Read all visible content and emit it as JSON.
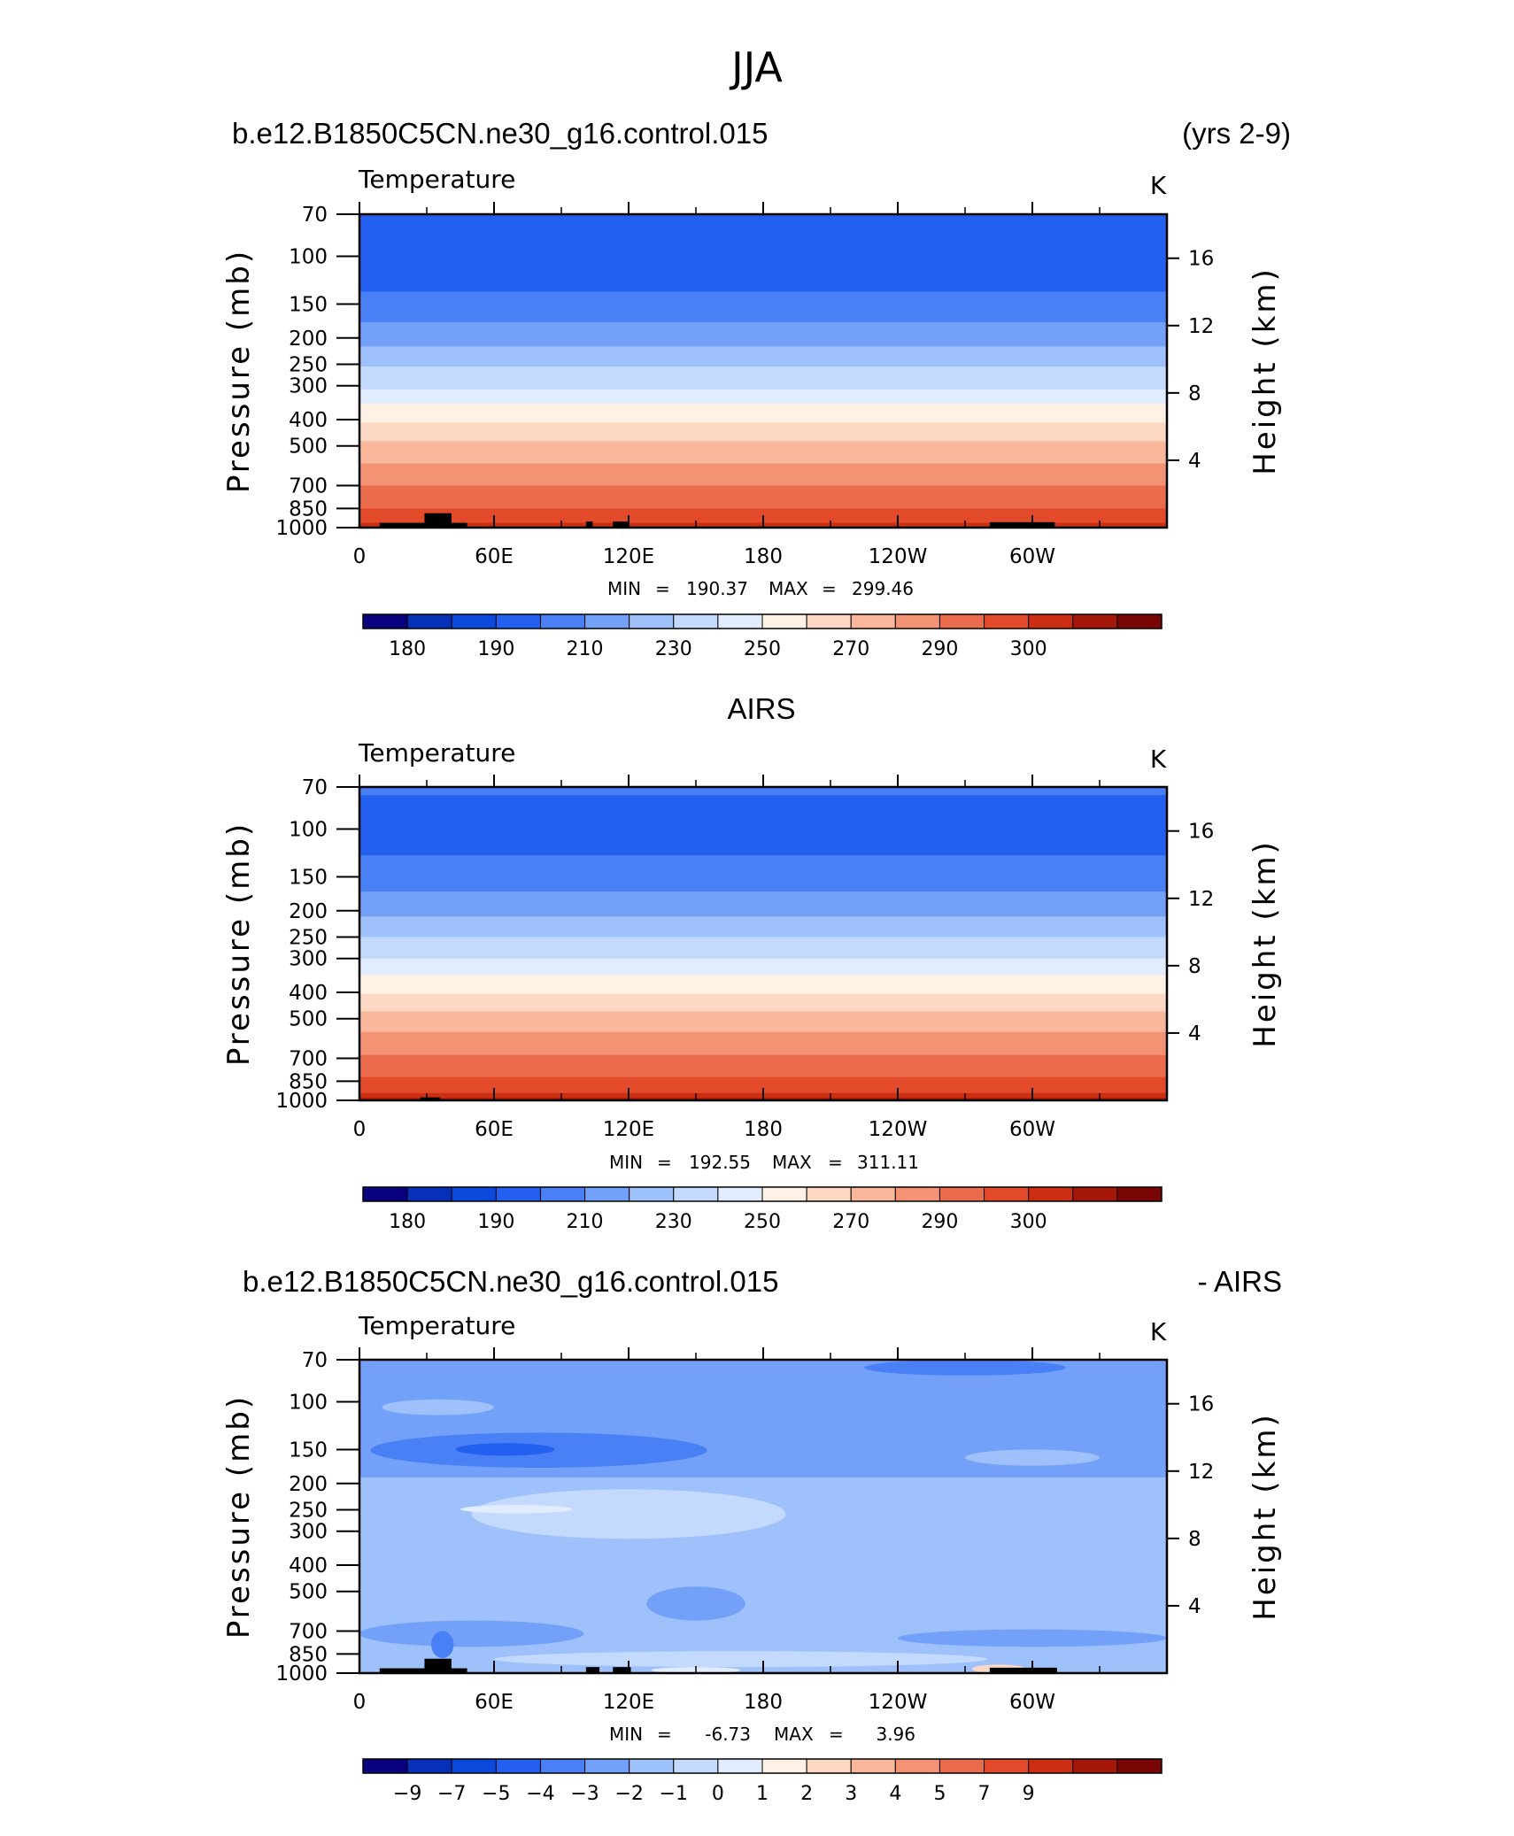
{
  "figure": {
    "title": "JJA"
  },
  "colorbar_colors": [
    "#08007e",
    "#0730b8",
    "#0b49dd",
    "#2460ef",
    "#4a80f5",
    "#73a0f8",
    "#9ec0fb",
    "#c3d9fd",
    "#e1ecfe",
    "#fff1e4",
    "#fdd8c4",
    "#f9b89c",
    "#f39374",
    "#eb6c4c",
    "#e34a2a",
    "#cc2e12",
    "#a6170b",
    "#7a0505"
  ],
  "chart_data": [
    {
      "type": "heatmap",
      "id": "model",
      "title_left": "b.e12.B1850C5CN.ne30_g16.control.015",
      "title_right": "(yrs 2-9)",
      "variable": "Temperature",
      "units": "K",
      "ylabel": "Pressure (mb)",
      "ylabel_right": "Height (km)",
      "x_ticks": [
        "0",
        "60E",
        "120E",
        "180",
        "120W",
        "60W"
      ],
      "x_tick_values": [
        0,
        60,
        120,
        180,
        240,
        300
      ],
      "x_range": [
        0,
        360
      ],
      "y_ticks": [
        "70",
        "100",
        "150",
        "200",
        "250",
        "300",
        "400",
        "500",
        "700",
        "850",
        "1000"
      ],
      "y_tick_values": [
        70,
        100,
        150,
        200,
        250,
        300,
        400,
        500,
        700,
        850,
        1000
      ],
      "y_scale": "log",
      "y_range": [
        70,
        1000
      ],
      "height_ticks": [
        "4",
        "8",
        "12",
        "16"
      ],
      "height_tick_values": [
        4,
        8,
        12,
        16
      ],
      "min_label": "MIN",
      "min_value": "190.37",
      "max_label": "MAX",
      "max_value": "299.46",
      "stat_eq": "=",
      "colorbar_labels": [
        "180",
        "190",
        "210",
        "230",
        "250",
        "270",
        "290",
        "300"
      ],
      "colorbar_label_edges": [
        1,
        3,
        5,
        7,
        9,
        11,
        13,
        15
      ],
      "bands": [
        {
          "p_top": 70,
          "p_bot": 135,
          "color_index": 3
        },
        {
          "p_top": 135,
          "p_bot": 175,
          "color_index": 4
        },
        {
          "p_top": 175,
          "p_bot": 215,
          "color_index": 5
        },
        {
          "p_top": 215,
          "p_bot": 255,
          "color_index": 6
        },
        {
          "p_top": 255,
          "p_bot": 310,
          "color_index": 7
        },
        {
          "p_top": 310,
          "p_bot": 350,
          "color_index": 8
        },
        {
          "p_top": 350,
          "p_bot": 410,
          "color_index": 9
        },
        {
          "p_top": 410,
          "p_bot": 480,
          "color_index": 10
        },
        {
          "p_top": 480,
          "p_bot": 580,
          "color_index": 11
        },
        {
          "p_top": 580,
          "p_bot": 700,
          "color_index": 12
        },
        {
          "p_top": 700,
          "p_bot": 850,
          "color_index": 13
        },
        {
          "p_top": 850,
          "p_bot": 960,
          "color_index": 14
        },
        {
          "p_top": 960,
          "p_bot": 1000,
          "color_index": 15
        }
      ],
      "terrain": [
        {
          "lon0": 9,
          "lon1": 48,
          "p_top": 960
        },
        {
          "lon0": 29,
          "lon1": 41,
          "p_top": 885
        },
        {
          "lon0": 101,
          "lon1": 104,
          "p_top": 950
        },
        {
          "lon0": 113,
          "lon1": 120,
          "p_top": 950
        },
        {
          "lon0": 281,
          "lon1": 310,
          "p_top": 955
        }
      ]
    },
    {
      "type": "heatmap",
      "id": "obs",
      "title_center": "AIRS",
      "variable": "Temperature",
      "units": "K",
      "ylabel": "Pressure (mb)",
      "ylabel_right": "Height (km)",
      "x_ticks": [
        "0",
        "60E",
        "120E",
        "180",
        "120W",
        "60W"
      ],
      "x_tick_values": [
        0,
        60,
        120,
        180,
        240,
        300
      ],
      "x_range": [
        0,
        360
      ],
      "y_ticks": [
        "70",
        "100",
        "150",
        "200",
        "250",
        "300",
        "400",
        "500",
        "700",
        "850",
        "1000"
      ],
      "y_tick_values": [
        70,
        100,
        150,
        200,
        250,
        300,
        400,
        500,
        700,
        850,
        1000
      ],
      "y_scale": "log",
      "y_range": [
        70,
        1000
      ],
      "height_ticks": [
        "4",
        "8",
        "12",
        "16"
      ],
      "height_tick_values": [
        4,
        8,
        12,
        16
      ],
      "min_label": "MIN",
      "min_value": "192.55",
      "max_label": "MAX",
      "max_value": "311.11",
      "stat_eq": "=",
      "colorbar_labels": [
        "180",
        "190",
        "210",
        "230",
        "250",
        "270",
        "290",
        "300"
      ],
      "colorbar_label_edges": [
        1,
        3,
        5,
        7,
        9,
        11,
        13,
        15
      ],
      "bands": [
        {
          "p_top": 70,
          "p_bot": 75,
          "color_index": 4
        },
        {
          "p_top": 75,
          "p_bot": 125,
          "color_index": 3
        },
        {
          "p_top": 125,
          "p_bot": 170,
          "color_index": 4
        },
        {
          "p_top": 170,
          "p_bot": 210,
          "color_index": 5
        },
        {
          "p_top": 210,
          "p_bot": 250,
          "color_index": 6
        },
        {
          "p_top": 250,
          "p_bot": 300,
          "color_index": 7
        },
        {
          "p_top": 300,
          "p_bot": 345,
          "color_index": 8
        },
        {
          "p_top": 345,
          "p_bot": 405,
          "color_index": 9
        },
        {
          "p_top": 405,
          "p_bot": 470,
          "color_index": 10
        },
        {
          "p_top": 470,
          "p_bot": 560,
          "color_index": 11
        },
        {
          "p_top": 560,
          "p_bot": 680,
          "color_index": 12
        },
        {
          "p_top": 680,
          "p_bot": 820,
          "color_index": 13
        },
        {
          "p_top": 820,
          "p_bot": 940,
          "color_index": 14
        },
        {
          "p_top": 940,
          "p_bot": 980,
          "color_index": 15
        },
        {
          "p_top": 980,
          "p_bot": 1000,
          "color_index": 16
        }
      ],
      "terrain": [
        {
          "lon0": 27,
          "lon1": 36,
          "p_top": 975
        }
      ]
    },
    {
      "type": "heatmap",
      "id": "diff",
      "title_left": "b.e12.B1850C5CN.ne30_g16.control.015",
      "title_right": "- AIRS",
      "variable": "Temperature",
      "units": "K",
      "ylabel": "Pressure (mb)",
      "ylabel_right": "Height (km)",
      "x_ticks": [
        "0",
        "60E",
        "120E",
        "180",
        "120W",
        "60W"
      ],
      "x_tick_values": [
        0,
        60,
        120,
        180,
        240,
        300
      ],
      "x_range": [
        0,
        360
      ],
      "y_ticks": [
        "70",
        "100",
        "150",
        "200",
        "250",
        "300",
        "400",
        "500",
        "700",
        "850",
        "1000"
      ],
      "y_tick_values": [
        70,
        100,
        150,
        200,
        250,
        300,
        400,
        500,
        700,
        850,
        1000
      ],
      "y_scale": "log",
      "y_range": [
        70,
        1000
      ],
      "height_ticks": [
        "4",
        "8",
        "12",
        "16"
      ],
      "height_tick_values": [
        4,
        8,
        12,
        16
      ],
      "min_label": "MIN",
      "min_value": "-6.73",
      "max_label": "MAX",
      "max_value": "3.96",
      "stat_eq": "=",
      "colorbar_labels": [
        "−9",
        "−7",
        "−5",
        "−4",
        "−3",
        "−2",
        "−1",
        "0",
        "1",
        "2",
        "3",
        "4",
        "5",
        "7",
        "9"
      ],
      "colorbar_label_edges": [
        1,
        2,
        3,
        4,
        5,
        6,
        7,
        8,
        9,
        10,
        11,
        12,
        13,
        14,
        15
      ],
      "background_color_index": 5,
      "bands": [
        {
          "p_top": 190,
          "p_bot": 1000,
          "color_index": 6
        }
      ],
      "blobs": [
        {
          "lon": 80,
          "p": 150,
          "rlon": 75,
          "rp_top": 130,
          "rp_bot": 175,
          "color_index": 4
        },
        {
          "lon": 65,
          "p": 150,
          "rlon": 22,
          "rp_top": 142,
          "rp_bot": 158,
          "color_index": 3
        },
        {
          "lon": 35,
          "p": 105,
          "rlon": 25,
          "rp_top": 98,
          "rp_bot": 112,
          "color_index": 6
        },
        {
          "lon": 300,
          "p": 160,
          "rlon": 30,
          "rp_top": 150,
          "rp_bot": 172,
          "color_index": 6
        },
        {
          "lon": 270,
          "p": 72,
          "rlon": 45,
          "rp_top": 70,
          "rp_bot": 80,
          "color_index": 4
        },
        {
          "lon": 120,
          "p": 250,
          "rlon": 70,
          "rp_top": 210,
          "rp_bot": 320,
          "color_index": 7
        },
        {
          "lon": 70,
          "p": 248,
          "rlon": 25,
          "rp_top": 240,
          "rp_bot": 258,
          "color_index": 8
        },
        {
          "lon": 150,
          "p": 560,
          "rlon": 22,
          "rp_top": 480,
          "rp_bot": 640,
          "color_index": 5
        },
        {
          "lon": 50,
          "p": 720,
          "rlon": 50,
          "rp_top": 640,
          "rp_bot": 800,
          "color_index": 5
        },
        {
          "lon": 300,
          "p": 740,
          "rlon": 60,
          "rp_top": 690,
          "rp_bot": 800,
          "color_index": 5
        },
        {
          "lon": 170,
          "p": 880,
          "rlon": 110,
          "rp_top": 830,
          "rp_bot": 950,
          "color_index": 7
        },
        {
          "lon": 150,
          "p": 970,
          "rlon": 20,
          "rp_top": 950,
          "rp_bot": 1000,
          "color_index": 8
        },
        {
          "lon": 285,
          "p": 960,
          "rlon": 12,
          "rp_top": 930,
          "rp_bot": 1000,
          "color_index": 10
        },
        {
          "lon": 37,
          "p": 780,
          "rlon": 5,
          "rp_top": 700,
          "rp_bot": 880,
          "color_index": 4
        }
      ],
      "terrain": [
        {
          "lon0": 9,
          "lon1": 48,
          "p_top": 960
        },
        {
          "lon0": 29,
          "lon1": 41,
          "p_top": 885
        },
        {
          "lon0": 101,
          "lon1": 107,
          "p_top": 950
        },
        {
          "lon0": 113,
          "lon1": 121,
          "p_top": 950
        },
        {
          "lon0": 281,
          "lon1": 311,
          "p_top": 955
        }
      ]
    }
  ]
}
